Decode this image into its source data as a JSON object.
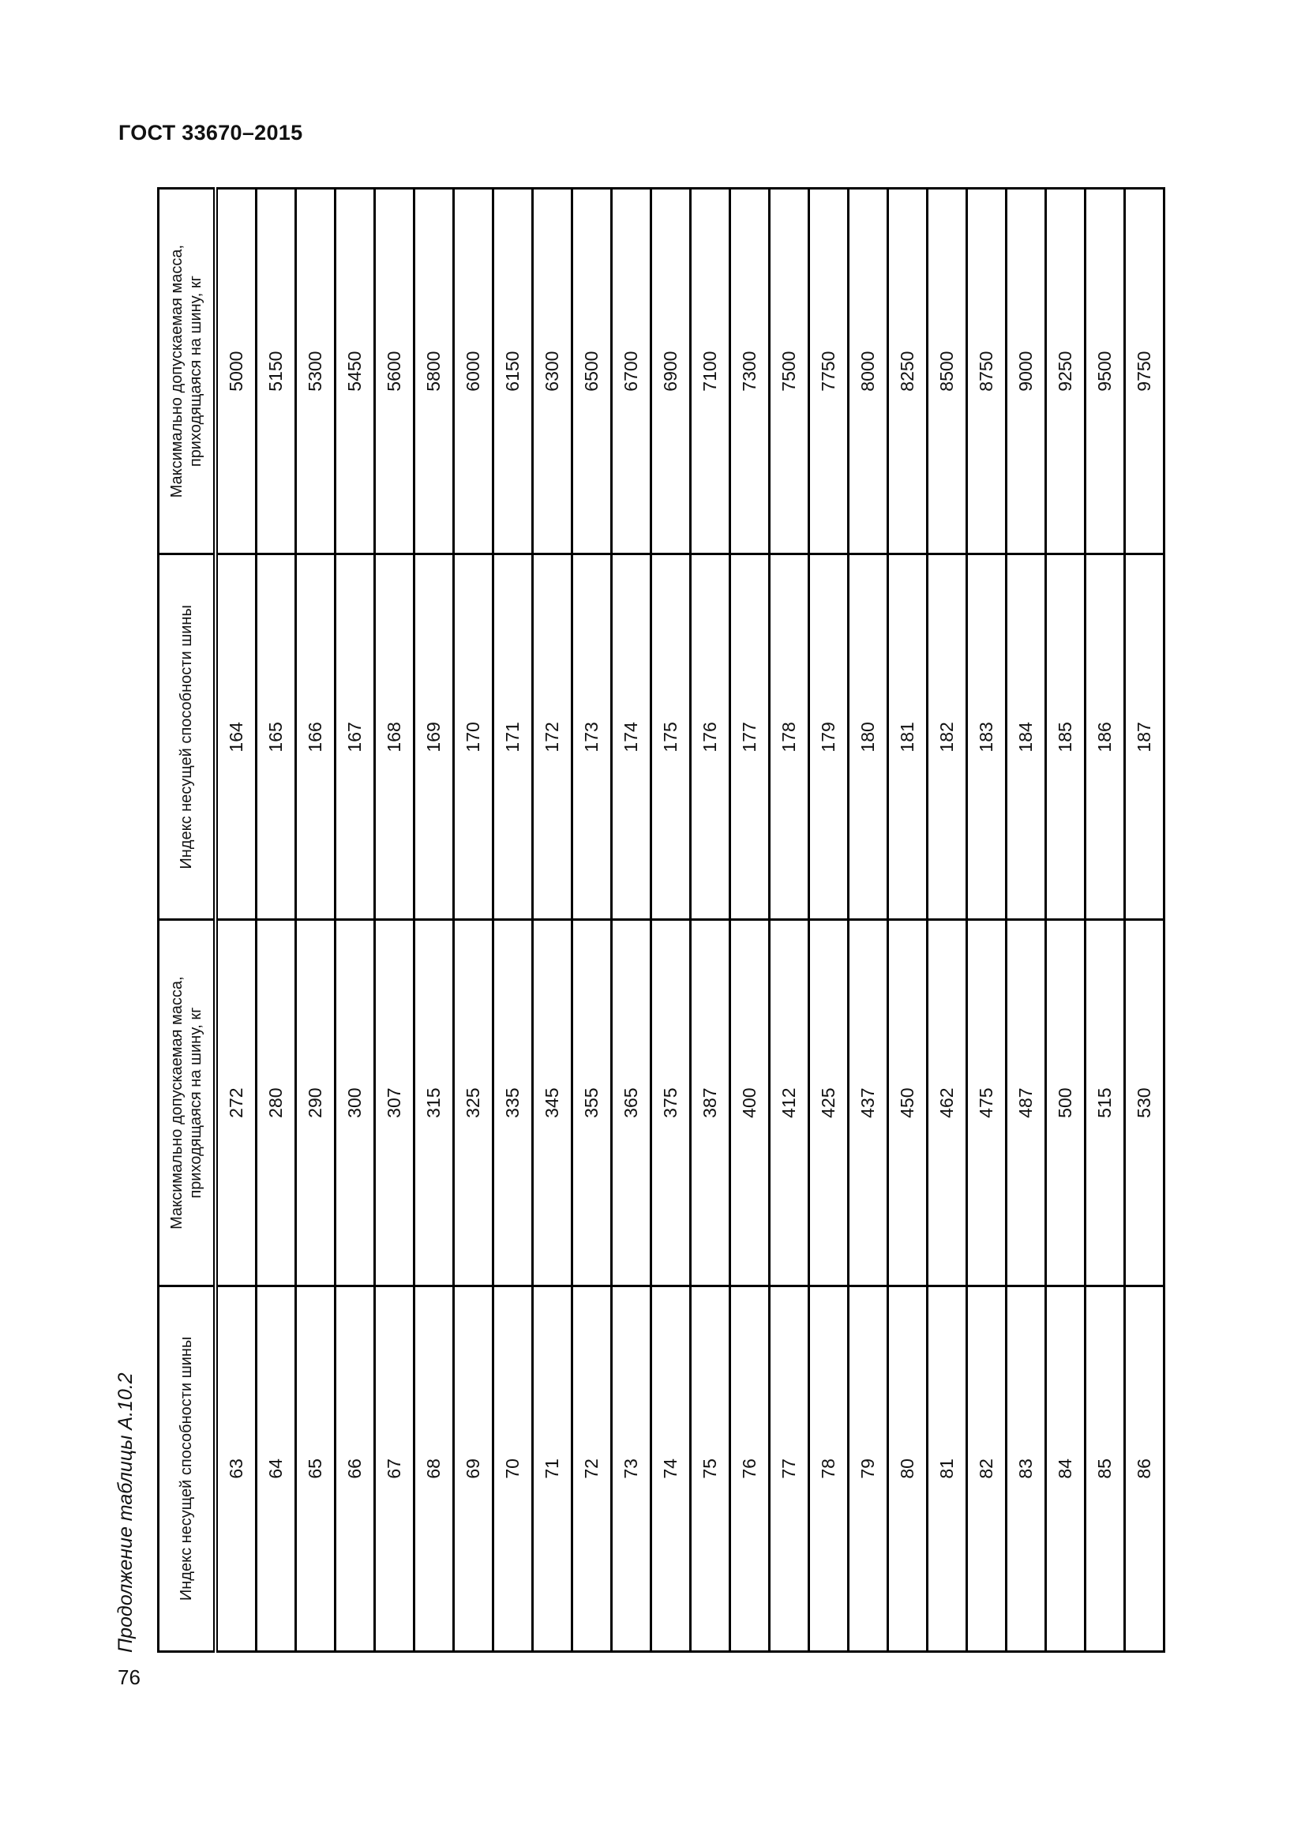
{
  "header": {
    "title": "ГОСТ 33670–2015"
  },
  "caption": "Продолжение таблицы А.10.2",
  "page_number": "76",
  "table": {
    "columns": [
      {
        "lines": [
          "Индекс несущей способности шины"
        ]
      },
      {
        "lines": [
          "Максимально допускаемая масса,",
          "приходящаяся на шину, кг"
        ]
      },
      {
        "lines": [
          "Индекс несущей способности шины"
        ]
      },
      {
        "lines": [
          "Максимально допускаемая масса,",
          "приходящаяся на шину, кг"
        ]
      }
    ],
    "rows": [
      [
        "63",
        "272",
        "164",
        "5000"
      ],
      [
        "64",
        "280",
        "165",
        "5150"
      ],
      [
        "65",
        "290",
        "166",
        "5300"
      ],
      [
        "66",
        "300",
        "167",
        "5450"
      ],
      [
        "67",
        "307",
        "168",
        "5600"
      ],
      [
        "68",
        "315",
        "169",
        "5800"
      ],
      [
        "69",
        "325",
        "170",
        "6000"
      ],
      [
        "70",
        "335",
        "171",
        "6150"
      ],
      [
        "71",
        "345",
        "172",
        "6300"
      ],
      [
        "72",
        "355",
        "173",
        "6500"
      ],
      [
        "73",
        "365",
        "174",
        "6700"
      ],
      [
        "74",
        "375",
        "175",
        "6900"
      ],
      [
        "75",
        "387",
        "176",
        "7100"
      ],
      [
        "76",
        "400",
        "177",
        "7300"
      ],
      [
        "77",
        "412",
        "178",
        "7500"
      ],
      [
        "78",
        "425",
        "179",
        "7750"
      ],
      [
        "79",
        "437",
        "180",
        "8000"
      ],
      [
        "80",
        "450",
        "181",
        "8250"
      ],
      [
        "81",
        "462",
        "182",
        "8500"
      ],
      [
        "82",
        "475",
        "183",
        "8750"
      ],
      [
        "83",
        "487",
        "184",
        "9000"
      ],
      [
        "84",
        "500",
        "185",
        "9250"
      ],
      [
        "85",
        "515",
        "186",
        "9500"
      ],
      [
        "86",
        "530",
        "187",
        "9750"
      ]
    ]
  }
}
